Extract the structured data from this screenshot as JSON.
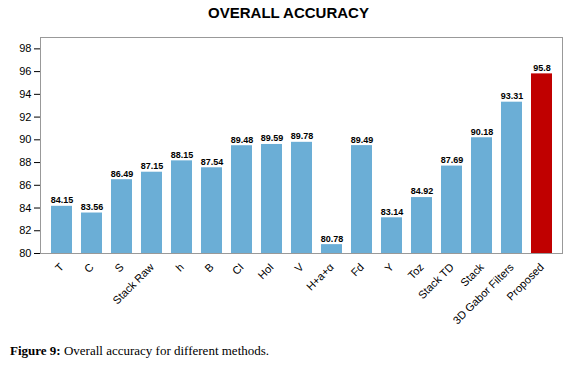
{
  "chart_data": {
    "type": "bar",
    "title": "OVERALL ACCURACY",
    "categories": [
      "T",
      "C",
      "S",
      "Stack Raw",
      "h",
      "B",
      "CI",
      "HoI",
      "V",
      "H+a+α",
      "Fd",
      "Y",
      "Toz",
      "Stack TD",
      "Stack",
      "3D Gabor Filters",
      "Proposed"
    ],
    "values": [
      84.15,
      83.56,
      86.49,
      87.15,
      88.15,
      87.54,
      89.48,
      89.59,
      89.78,
      80.78,
      89.49,
      83.14,
      84.92,
      87.69,
      90.18,
      93.31,
      95.8
    ],
    "colors": [
      "#6BAED6",
      "#6BAED6",
      "#6BAED6",
      "#6BAED6",
      "#6BAED6",
      "#6BAED6",
      "#6BAED6",
      "#6BAED6",
      "#6BAED6",
      "#6BAED6",
      "#6BAED6",
      "#6BAED6",
      "#6BAED6",
      "#6BAED6",
      "#6BAED6",
      "#6BAED6",
      "#C00000"
    ],
    "ylim": [
      80,
      99
    ],
    "yticks": [
      80,
      82,
      84,
      86,
      88,
      90,
      92,
      94,
      96,
      98
    ],
    "grid": false,
    "data_labels": true,
    "caption": "Figure 9: Overall accuracy for different methods."
  }
}
